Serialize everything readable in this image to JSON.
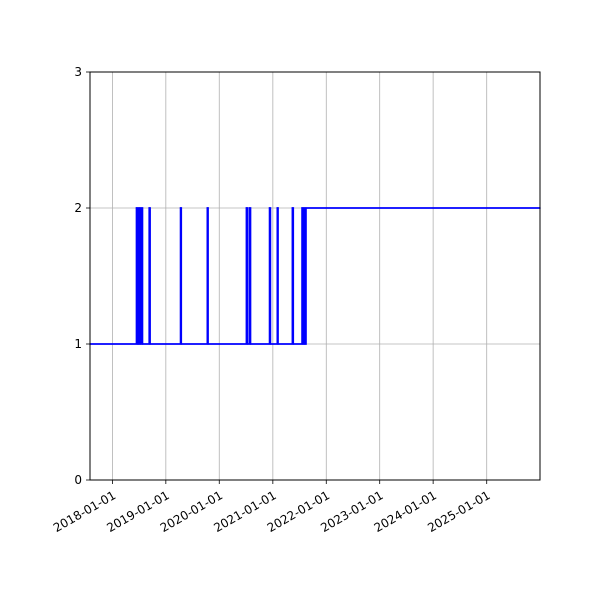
{
  "chart_data": {
    "type": "line",
    "title": "",
    "xlabel": "",
    "ylabel": "",
    "x_axis_type": "date",
    "xlim": [
      "2017-08-01",
      "2025-12-31"
    ],
    "ylim": [
      0,
      3
    ],
    "grid": true,
    "x_ticks": [
      "2018-01-01",
      "2019-01-01",
      "2020-01-01",
      "2021-01-01",
      "2022-01-01",
      "2023-01-01",
      "2024-01-01",
      "2025-01-01"
    ],
    "y_ticks": [
      0,
      1,
      2,
      3
    ],
    "series": [
      {
        "color": "#0000ff",
        "style": "steps-post",
        "points": [
          {
            "x": "2017-08-01",
            "y": 1
          },
          {
            "x": "2018-06-15",
            "y": 2
          },
          {
            "x": "2018-06-20",
            "y": 1
          },
          {
            "x": "2018-06-25",
            "y": 2
          },
          {
            "x": "2018-06-30",
            "y": 1
          },
          {
            "x": "2018-07-05",
            "y": 2
          },
          {
            "x": "2018-07-10",
            "y": 1
          },
          {
            "x": "2018-07-15",
            "y": 2
          },
          {
            "x": "2018-07-25",
            "y": 1
          },
          {
            "x": "2018-09-10",
            "y": 2
          },
          {
            "x": "2018-09-15",
            "y": 1
          },
          {
            "x": "2019-04-12",
            "y": 2
          },
          {
            "x": "2019-04-16",
            "y": 1
          },
          {
            "x": "2019-10-12",
            "y": 2
          },
          {
            "x": "2019-10-16",
            "y": 1
          },
          {
            "x": "2020-07-05",
            "y": 2
          },
          {
            "x": "2020-07-10",
            "y": 1
          },
          {
            "x": "2020-07-25",
            "y": 2
          },
          {
            "x": "2020-08-01",
            "y": 1
          },
          {
            "x": "2020-12-10",
            "y": 2
          },
          {
            "x": "2020-12-15",
            "y": 1
          },
          {
            "x": "2021-02-01",
            "y": 2
          },
          {
            "x": "2021-02-05",
            "y": 1
          },
          {
            "x": "2021-05-15",
            "y": 2
          },
          {
            "x": "2021-05-20",
            "y": 1
          },
          {
            "x": "2021-07-20",
            "y": 2
          },
          {
            "x": "2021-07-25",
            "y": 1
          },
          {
            "x": "2021-08-01",
            "y": 2
          },
          {
            "x": "2021-08-08",
            "y": 1
          },
          {
            "x": "2021-08-15",
            "y": 2
          },
          {
            "x": "2025-12-31",
            "y": 2
          }
        ]
      }
    ]
  }
}
